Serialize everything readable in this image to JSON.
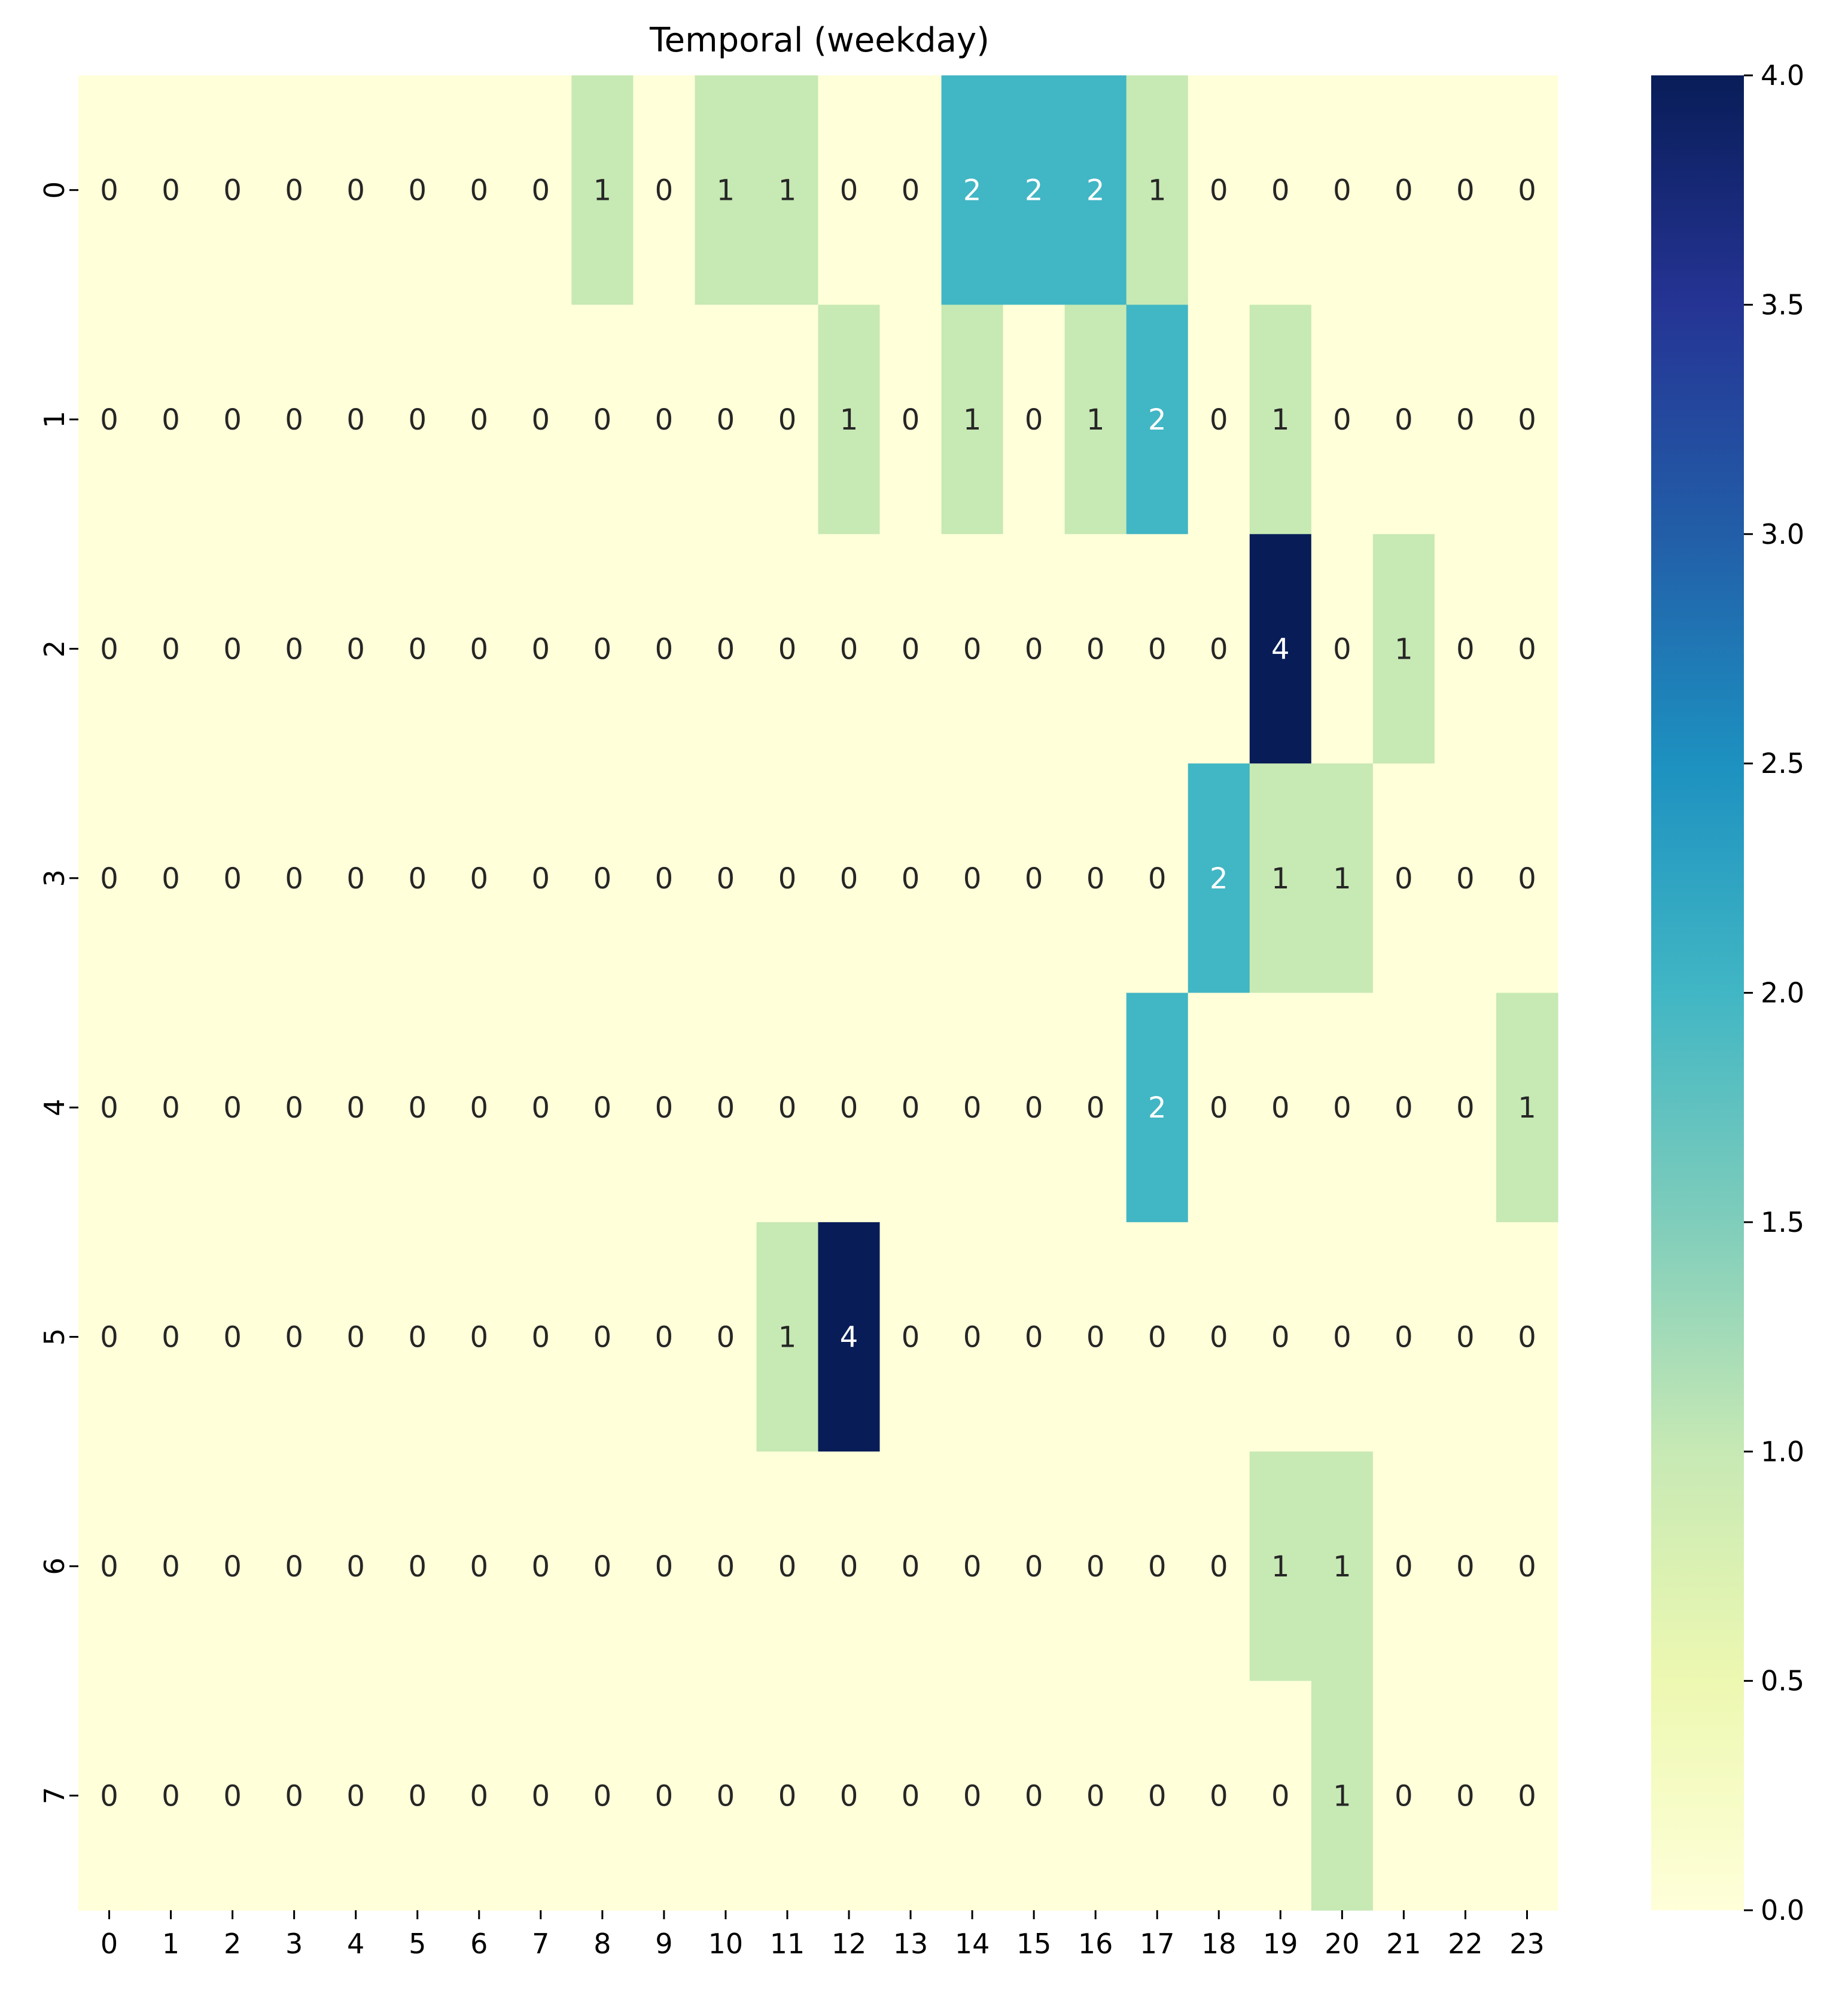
{
  "chart_data": {
    "type": "heatmap",
    "title": "Temporal (weekday)",
    "xlabel": "",
    "ylabel": "",
    "x_categories": [
      "0",
      "1",
      "2",
      "3",
      "4",
      "5",
      "6",
      "7",
      "8",
      "9",
      "10",
      "11",
      "12",
      "13",
      "14",
      "15",
      "16",
      "17",
      "18",
      "19",
      "20",
      "21",
      "22",
      "23"
    ],
    "y_categories": [
      "0",
      "1",
      "2",
      "3",
      "4",
      "5",
      "6",
      "7"
    ],
    "values": [
      [
        0,
        0,
        0,
        0,
        0,
        0,
        0,
        0,
        1,
        0,
        1,
        1,
        0,
        0,
        2,
        2,
        2,
        1,
        0,
        0,
        0,
        0,
        0,
        0
      ],
      [
        0,
        0,
        0,
        0,
        0,
        0,
        0,
        0,
        0,
        0,
        0,
        0,
        1,
        0,
        1,
        0,
        1,
        2,
        0,
        1,
        0,
        0,
        0,
        0
      ],
      [
        0,
        0,
        0,
        0,
        0,
        0,
        0,
        0,
        0,
        0,
        0,
        0,
        0,
        0,
        0,
        0,
        0,
        0,
        0,
        4,
        0,
        1,
        0,
        0
      ],
      [
        0,
        0,
        0,
        0,
        0,
        0,
        0,
        0,
        0,
        0,
        0,
        0,
        0,
        0,
        0,
        0,
        0,
        0,
        2,
        1,
        1,
        0,
        0,
        0
      ],
      [
        0,
        0,
        0,
        0,
        0,
        0,
        0,
        0,
        0,
        0,
        0,
        0,
        0,
        0,
        0,
        0,
        0,
        2,
        0,
        0,
        0,
        0,
        0,
        1
      ],
      [
        0,
        0,
        0,
        0,
        0,
        0,
        0,
        0,
        0,
        0,
        0,
        1,
        4,
        0,
        0,
        0,
        0,
        0,
        0,
        0,
        0,
        0,
        0,
        0
      ],
      [
        0,
        0,
        0,
        0,
        0,
        0,
        0,
        0,
        0,
        0,
        0,
        0,
        0,
        0,
        0,
        0,
        0,
        0,
        0,
        1,
        1,
        0,
        0,
        0
      ],
      [
        0,
        0,
        0,
        0,
        0,
        0,
        0,
        0,
        0,
        0,
        0,
        0,
        0,
        0,
        0,
        0,
        0,
        0,
        0,
        0,
        1,
        0,
        0,
        0
      ]
    ],
    "vmin": 0,
    "vmax": 4,
    "colormap": "YlGnBu",
    "colorbar_ticks": [
      "0.0",
      "0.5",
      "1.0",
      "1.5",
      "2.0",
      "2.5",
      "3.0",
      "3.5",
      "4.0"
    ],
    "annotations": true,
    "grid": false,
    "legend": "colorbar-right"
  }
}
